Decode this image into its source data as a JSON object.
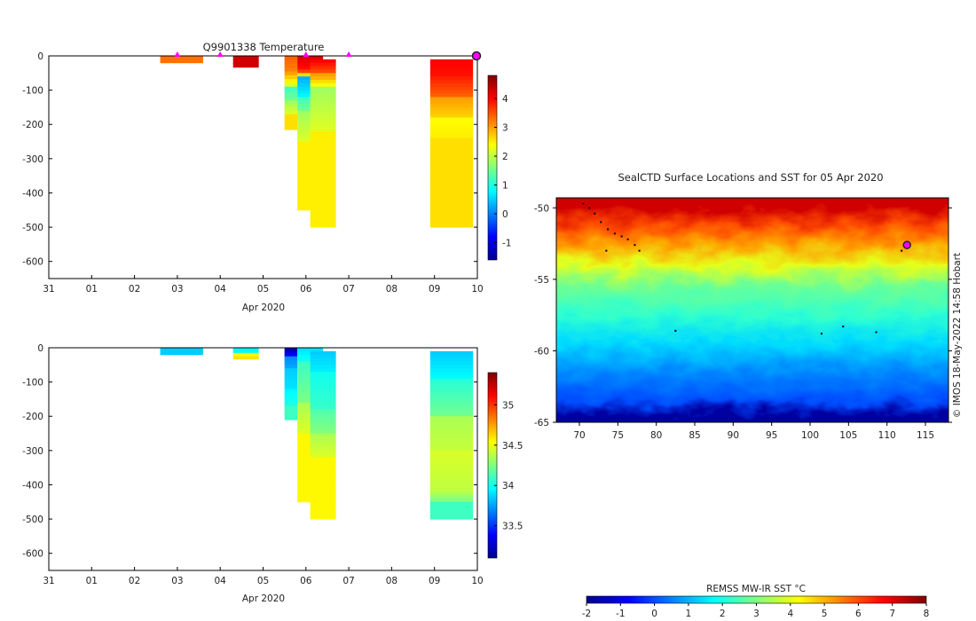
{
  "colors": {
    "jet": [
      "#00008f",
      "#0000ff",
      "#0080ff",
      "#00ffff",
      "#80ff80",
      "#ffff00",
      "#ff8000",
      "#ff0000",
      "#800000"
    ],
    "marker": "#ff00ff"
  },
  "chart_data": [
    {
      "type": "heatmap",
      "title": "Q9901338  Temperature",
      "xlabel": "Apr 2020",
      "ylabel": "",
      "x_ticks": [
        "31",
        "01",
        "02",
        "03",
        "04",
        "05",
        "06",
        "07",
        "08",
        "09",
        "10"
      ],
      "y_ticks": [
        "0",
        "-100",
        "-200",
        "-300",
        "-400",
        "-500",
        "-600"
      ],
      "xlim": [
        "2020-03-31",
        "2020-04-10"
      ],
      "ylim": [
        -650,
        0
      ],
      "colorbar": {
        "ticks": [
          "-1",
          "0",
          "1",
          "2",
          "3",
          "4"
        ],
        "range": [
          -1.6,
          4.8
        ]
      },
      "marker_days": [
        "2020-04-03",
        "2020-04-04",
        "2020-04-06",
        "2020-04-07"
      ],
      "current_position_day": "2020-04-10",
      "profiles": [
        {
          "start": "2020-04-02.6",
          "end": "2020-04-03.6",
          "depths": [
            0,
            -20
          ],
          "values": [
            3.3
          ]
        },
        {
          "start": "2020-04-04.3",
          "end": "2020-04-04.9",
          "depths": [
            0,
            -33
          ],
          "values": [
            4.3
          ]
        },
        {
          "start": "2020-04-05.5",
          "end": "2020-04-05.8",
          "depths": [
            0,
            -45,
            -90,
            -130,
            -170,
            -215
          ],
          "values": [
            3.4,
            3.0,
            1.2,
            1.8,
            2.6
          ]
        },
        {
          "start": "2020-04-05.8",
          "end": "2020-04-06.4",
          "depths": [
            0,
            -40,
            -60,
            -120,
            -160,
            -250,
            -450
          ],
          "values": [
            4.2,
            3.6,
            0.3,
            1.2,
            1.8,
            2.5
          ]
        },
        {
          "start": "2020-04-06.1",
          "end": "2020-04-06.7",
          "depths": [
            -10,
            -50,
            -70,
            -90,
            -220,
            -500
          ],
          "values": [
            4.0,
            3.0,
            2.6,
            1.8,
            2.5
          ]
        },
        {
          "start": "2020-04-08.9",
          "end": "2020-04-09.9",
          "depths": [
            -10,
            -60,
            -120,
            -180,
            -240,
            -500
          ],
          "values": [
            4.0,
            3.8,
            3.0,
            2.4,
            2.6
          ]
        }
      ]
    },
    {
      "type": "heatmap",
      "title": "",
      "xlabel": "Apr 2020",
      "ylabel": "",
      "x_ticks": [
        "31",
        "01",
        "02",
        "03",
        "04",
        "05",
        "06",
        "07",
        "08",
        "09",
        "10"
      ],
      "y_ticks": [
        "0",
        "-100",
        "-200",
        "-300",
        "-400",
        "-500",
        "-600"
      ],
      "xlim": [
        "2020-03-31",
        "2020-04-10"
      ],
      "ylim": [
        -650,
        0
      ],
      "colorbar": {
        "ticks": [
          "33.5",
          "34",
          "34.5",
          "35"
        ],
        "range": [
          33.1,
          35.4
        ]
      },
      "profiles": [
        {
          "start": "2020-04-02.6",
          "end": "2020-04-03.6",
          "depths": [
            0,
            -20
          ],
          "values": [
            33.85
          ]
        },
        {
          "start": "2020-04-04.3",
          "end": "2020-04-04.9",
          "depths": [
            0,
            -15,
            -25,
            -33
          ],
          "values": [
            33.95,
            34.5,
            34.6
          ]
        },
        {
          "start": "2020-04-05.5",
          "end": "2020-04-05.8",
          "depths": [
            0,
            -25,
            -60,
            -120,
            -170,
            -210
          ],
          "values": [
            33.2,
            33.7,
            33.85,
            33.95,
            34.1
          ]
        },
        {
          "start": "2020-04-05.8",
          "end": "2020-04-06.4",
          "depths": [
            0,
            -40,
            -160,
            -250,
            -450
          ],
          "values": [
            33.9,
            34.1,
            34.35,
            34.55
          ]
        },
        {
          "start": "2020-04-06.1",
          "end": "2020-04-06.7",
          "depths": [
            -10,
            -70,
            -180,
            -250,
            -320,
            -500
          ],
          "values": [
            33.85,
            34.0,
            34.15,
            34.35,
            34.55
          ]
        },
        {
          "start": "2020-04-08.9",
          "end": "2020-04-09.9",
          "depths": [
            -10,
            -90,
            -200,
            -300,
            -420,
            -450,
            -500
          ],
          "values": [
            33.85,
            34.05,
            34.35,
            34.45,
            34.35,
            34.1
          ]
        }
      ]
    },
    {
      "type": "heatmap",
      "title": "SealCTD Surface Locations and SST for 05 Apr 2020",
      "xlabel": "",
      "ylabel": "",
      "x_ticks": [
        "70",
        "75",
        "80",
        "85",
        "90",
        "95",
        "100",
        "105",
        "110",
        "115"
      ],
      "y_ticks": [
        "-50",
        "-55",
        "-60",
        "-65"
      ],
      "xlim": [
        67,
        118
      ],
      "ylim": [
        -65,
        -49.3
      ],
      "colorbar": {
        "label": "REMSS MW-IR SST °C",
        "ticks": [
          "-2",
          "-1",
          "0",
          "1",
          "2",
          "3",
          "4",
          "5",
          "6",
          "7",
          "8"
        ],
        "range": [
          -2,
          8
        ]
      },
      "sst_bands": [
        {
          "lat": -50.0,
          "value": 7.2
        },
        {
          "lat": -51.3,
          "value": 6.0
        },
        {
          "lat": -52.5,
          "value": 5.2
        },
        {
          "lat": -54.0,
          "value": 4.0
        },
        {
          "lat": -55.5,
          "value": 2.8
        },
        {
          "lat": -57.5,
          "value": 2.2
        },
        {
          "lat": -59.5,
          "value": 1.4
        },
        {
          "lat": -61.5,
          "value": 0.6
        },
        {
          "lat": -63.5,
          "value": 0.0
        },
        {
          "lat": -64.5,
          "value": -1.8
        }
      ],
      "track": [
        [
          70.5,
          -49.7
        ],
        [
          71.3,
          -50.0
        ],
        [
          72.0,
          -50.4
        ],
        [
          72.8,
          -51.0
        ],
        [
          73.7,
          -51.5
        ],
        [
          74.6,
          -51.8
        ],
        [
          75.5,
          -52.0
        ],
        [
          76.3,
          -52.2
        ],
        [
          77.2,
          -52.6
        ],
        [
          77.8,
          -53.0
        ],
        [
          73.5,
          -53.0
        ],
        [
          82.5,
          -58.6
        ],
        [
          101.5,
          -58.8
        ],
        [
          104.3,
          -58.3
        ],
        [
          108.6,
          -58.7
        ],
        [
          111.9,
          -53.0
        ]
      ],
      "current_position": [
        112.6,
        -52.6
      ],
      "credit": "© IMOS 18-May-2022 14:58 Hobart"
    }
  ]
}
